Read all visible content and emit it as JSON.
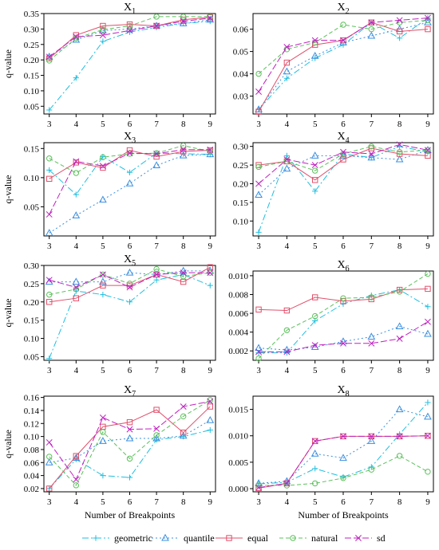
{
  "figure": {
    "xlabel": "Number of Breakpoints",
    "ylabel": "q-value"
  },
  "legend": [
    {
      "key": "geometric",
      "label": "geometric",
      "color": "#1fbfe0",
      "marker": "plus",
      "dash": "8,3,2,3"
    },
    {
      "key": "quantile",
      "label": "quantile",
      "color": "#3a8fe0",
      "marker": "triangle",
      "dash": "2,3"
    },
    {
      "key": "equal",
      "label": "equal",
      "color": "#e0506b",
      "marker": "square",
      "dash": ""
    },
    {
      "key": "natural",
      "label": "natural",
      "color": "#5cc05c",
      "marker": "circle",
      "dash": "5,3"
    },
    {
      "key": "sd",
      "label": "sd",
      "color": "#c020c0",
      "marker": "cross",
      "dash": "8,3"
    }
  ],
  "chart_data": [
    {
      "type": "line",
      "title": "X1",
      "title_main": "X",
      "title_sub": "1",
      "x": [
        3,
        4,
        5,
        6,
        7,
        8,
        9
      ],
      "ylim": [
        0.025,
        0.35
      ],
      "yticks": [
        0.05,
        0.1,
        0.15,
        0.2,
        0.25,
        0.3,
        0.35
      ],
      "ytick_labels": [
        "0.05",
        "0.10",
        "0.15",
        "0.20",
        "0.25",
        "0.30",
        "0.35"
      ],
      "xlabel": "",
      "ylabel": "q-value",
      "series": [
        {
          "name": "geometric",
          "values": [
            0.038,
            0.142,
            0.26,
            0.29,
            0.305,
            0.318,
            0.325
          ]
        },
        {
          "name": "quantile",
          "values": [
            0.21,
            0.265,
            0.295,
            0.3,
            0.31,
            0.318,
            0.33
          ]
        },
        {
          "name": "equal",
          "values": [
            0.205,
            0.28,
            0.31,
            0.315,
            0.31,
            0.33,
            0.338
          ]
        },
        {
          "name": "natural",
          "values": [
            0.198,
            0.27,
            0.298,
            0.31,
            0.34,
            0.34,
            0.34
          ]
        },
        {
          "name": "sd",
          "values": [
            0.21,
            0.275,
            0.28,
            0.295,
            0.31,
            0.325,
            0.335
          ]
        }
      ]
    },
    {
      "type": "line",
      "title": "X2",
      "title_main": "X",
      "title_sub": "2",
      "x": [
        3,
        4,
        5,
        6,
        7,
        8,
        9
      ],
      "ylim": [
        0.022,
        0.067
      ],
      "yticks": [
        0.03,
        0.04,
        0.05,
        0.06
      ],
      "ytick_labels": [
        "0.03",
        "0.04",
        "0.05",
        "0.06"
      ],
      "xlabel": "",
      "ylabel": "",
      "series": [
        {
          "name": "geometric",
          "values": [
            0.024,
            0.038,
            0.047,
            0.053,
            0.063,
            0.056,
            0.065
          ]
        },
        {
          "name": "quantile",
          "values": [
            0.024,
            0.041,
            0.048,
            0.054,
            0.057,
            0.06,
            0.063
          ]
        },
        {
          "name": "equal",
          "values": [
            0.023,
            0.045,
            0.053,
            0.055,
            0.063,
            0.059,
            0.06
          ]
        },
        {
          "name": "natural",
          "values": [
            0.04,
            0.051,
            0.054,
            0.062,
            0.06,
            0.063,
            0.064
          ]
        },
        {
          "name": "sd",
          "values": [
            0.032,
            0.052,
            0.055,
            0.055,
            0.063,
            0.064,
            0.065
          ]
        }
      ]
    },
    {
      "type": "line",
      "title": "X3",
      "title_main": "X",
      "title_sub": "3",
      "x": [
        3,
        4,
        5,
        6,
        7,
        8,
        9
      ],
      "ylim": [
        0.0,
        0.16
      ],
      "yticks": [
        0.05,
        0.1,
        0.15
      ],
      "ytick_labels": [
        "0.05",
        "0.10",
        "0.15"
      ],
      "xlabel": "",
      "ylabel": "q-value",
      "series": [
        {
          "name": "geometric",
          "values": [
            0.113,
            0.071,
            0.136,
            0.109,
            0.142,
            0.141,
            0.14
          ]
        },
        {
          "name": "quantile",
          "values": [
            0.005,
            0.035,
            0.062,
            0.09,
            0.121,
            0.138,
            0.14
          ]
        },
        {
          "name": "equal",
          "values": [
            0.098,
            0.126,
            0.117,
            0.147,
            0.136,
            0.145,
            0.147
          ]
        },
        {
          "name": "natural",
          "values": [
            0.133,
            0.108,
            0.135,
            0.141,
            0.142,
            0.155,
            0.145
          ]
        },
        {
          "name": "sd",
          "values": [
            0.037,
            0.128,
            0.12,
            0.142,
            0.141,
            0.148,
            0.148
          ]
        }
      ]
    },
    {
      "type": "line",
      "title": "X4",
      "title_main": "X",
      "title_sub": "4",
      "x": [
        3,
        4,
        5,
        6,
        7,
        8,
        9
      ],
      "ylim": [
        0.06,
        0.31
      ],
      "yticks": [
        0.1,
        0.15,
        0.2,
        0.25,
        0.3
      ],
      "ytick_labels": [
        "0.10",
        "0.15",
        "0.20",
        "0.25",
        "0.30"
      ],
      "xlabel": "",
      "ylabel": "",
      "series": [
        {
          "name": "geometric",
          "values": [
            0.07,
            0.275,
            0.18,
            0.28,
            0.27,
            0.3,
            0.285
          ]
        },
        {
          "name": "quantile",
          "values": [
            0.17,
            0.24,
            0.275,
            0.275,
            0.27,
            0.265,
            0.29
          ]
        },
        {
          "name": "equal",
          "values": [
            0.25,
            0.26,
            0.21,
            0.265,
            0.295,
            0.28,
            0.275
          ]
        },
        {
          "name": "natural",
          "values": [
            0.245,
            0.26,
            0.235,
            0.28,
            0.3,
            0.285,
            0.29
          ]
        },
        {
          "name": "sd",
          "values": [
            0.2,
            0.265,
            0.25,
            0.285,
            0.28,
            0.305,
            0.29
          ]
        }
      ]
    },
    {
      "type": "line",
      "title": "X5",
      "title_main": "X",
      "title_sub": "5",
      "x": [
        3,
        4,
        5,
        6,
        7,
        8,
        9
      ],
      "ylim": [
        0.04,
        0.3
      ],
      "yticks": [
        0.05,
        0.1,
        0.15,
        0.2,
        0.25,
        0.3
      ],
      "ytick_labels": [
        "0.05",
        "0.10",
        "0.15",
        "0.20",
        "0.25",
        "0.30"
      ],
      "xlabel": "",
      "ylabel": "q-value",
      "series": [
        {
          "name": "geometric",
          "values": [
            0.045,
            0.23,
            0.22,
            0.2,
            0.26,
            0.275,
            0.245
          ]
        },
        {
          "name": "quantile",
          "values": [
            0.255,
            0.255,
            0.255,
            0.28,
            0.275,
            0.285,
            0.285
          ]
        },
        {
          "name": "equal",
          "values": [
            0.2,
            0.21,
            0.245,
            0.245,
            0.275,
            0.255,
            0.295
          ]
        },
        {
          "name": "natural",
          "values": [
            0.22,
            0.235,
            0.275,
            0.25,
            0.29,
            0.27,
            0.28
          ]
        },
        {
          "name": "sd",
          "values": [
            0.26,
            0.24,
            0.275,
            0.24,
            0.275,
            0.28,
            0.28
          ]
        }
      ]
    },
    {
      "type": "line",
      "title": "X6",
      "title_main": "X",
      "title_sub": "6",
      "x": [
        3,
        4,
        5,
        6,
        7,
        8,
        9
      ],
      "ylim": [
        0.001,
        0.0105
      ],
      "yticks": [
        0.002,
        0.004,
        0.006,
        0.008,
        0.01
      ],
      "ytick_labels": [
        "0.002",
        "0.004",
        "0.006",
        "0.008",
        "0.010"
      ],
      "xlabel": "",
      "ylabel": "",
      "series": [
        {
          "name": "geometric",
          "values": [
            0.0018,
            0.0018,
            0.0052,
            0.007,
            0.0079,
            0.0085,
            0.0067
          ]
        },
        {
          "name": "quantile",
          "values": [
            0.0023,
            0.0021,
            0.0024,
            0.003,
            0.0035,
            0.0046,
            0.0038
          ]
        },
        {
          "name": "equal",
          "values": [
            0.0064,
            0.0063,
            0.0077,
            0.0073,
            0.0075,
            0.0085,
            0.0086
          ]
        },
        {
          "name": "natural",
          "values": [
            0.0012,
            0.0042,
            0.0057,
            0.0076,
            0.0077,
            0.0083,
            0.0102
          ]
        },
        {
          "name": "sd",
          "values": [
            0.0019,
            0.0019,
            0.0026,
            0.0028,
            0.0028,
            0.0033,
            0.0051
          ]
        }
      ]
    },
    {
      "type": "line",
      "title": "X7",
      "title_main": "X",
      "title_sub": "7",
      "x": [
        3,
        4,
        5,
        6,
        7,
        8,
        9
      ],
      "ylim": [
        0.015,
        0.162
      ],
      "yticks": [
        0.02,
        0.04,
        0.06,
        0.08,
        0.1,
        0.12,
        0.14,
        0.16
      ],
      "ytick_labels": [
        "0.02",
        "0.04",
        "0.06",
        "0.08",
        "0.10",
        "0.12",
        "0.14",
        "0.16"
      ],
      "xlabel": "Number of Breakpoints",
      "ylabel": "q-value",
      "series": [
        {
          "name": "geometric",
          "values": [
            0.02,
            0.065,
            0.04,
            0.037,
            0.095,
            0.1,
            0.11
          ]
        },
        {
          "name": "quantile",
          "values": [
            0.06,
            0.067,
            0.093,
            0.097,
            0.097,
            0.101,
            0.125
          ]
        },
        {
          "name": "equal",
          "values": [
            0.02,
            0.07,
            0.115,
            0.122,
            0.141,
            0.106,
            0.146
          ]
        },
        {
          "name": "natural",
          "values": [
            0.069,
            0.025,
            0.107,
            0.066,
            0.102,
            0.131,
            0.156
          ]
        },
        {
          "name": "sd",
          "values": [
            0.091,
            0.034,
            0.129,
            0.111,
            0.112,
            0.146,
            0.154
          ]
        }
      ]
    },
    {
      "type": "line",
      "title": "X8",
      "title_main": "X",
      "title_sub": "8",
      "x": [
        3,
        4,
        5,
        6,
        7,
        8,
        9
      ],
      "ylim": [
        -0.0006,
        0.0175
      ],
      "yticks": [
        0.0,
        0.005,
        0.01,
        0.015
      ],
      "ytick_labels": [
        "0.000",
        "0.005",
        "0.010",
        "0.015"
      ],
      "xlabel": "Number of Breakpoints",
      "ylabel": "",
      "series": [
        {
          "name": "geometric",
          "values": [
            0.0009,
            0.0012,
            0.0038,
            0.0022,
            0.0041,
            0.0103,
            0.0163
          ]
        },
        {
          "name": "quantile",
          "values": [
            0.001,
            0.0014,
            0.0066,
            0.0058,
            0.009,
            0.015,
            0.0136
          ]
        },
        {
          "name": "equal",
          "values": [
            0.0001,
            0.001,
            0.009,
            0.0099,
            0.0099,
            0.0099,
            0.01
          ]
        },
        {
          "name": "natural",
          "values": [
            0.0006,
            0.0006,
            0.001,
            0.002,
            0.0036,
            0.0062,
            0.0032
          ]
        },
        {
          "name": "sd",
          "values": [
            0.0002,
            0.001,
            0.009,
            0.0099,
            0.0099,
            0.0099,
            0.01
          ]
        }
      ]
    }
  ]
}
